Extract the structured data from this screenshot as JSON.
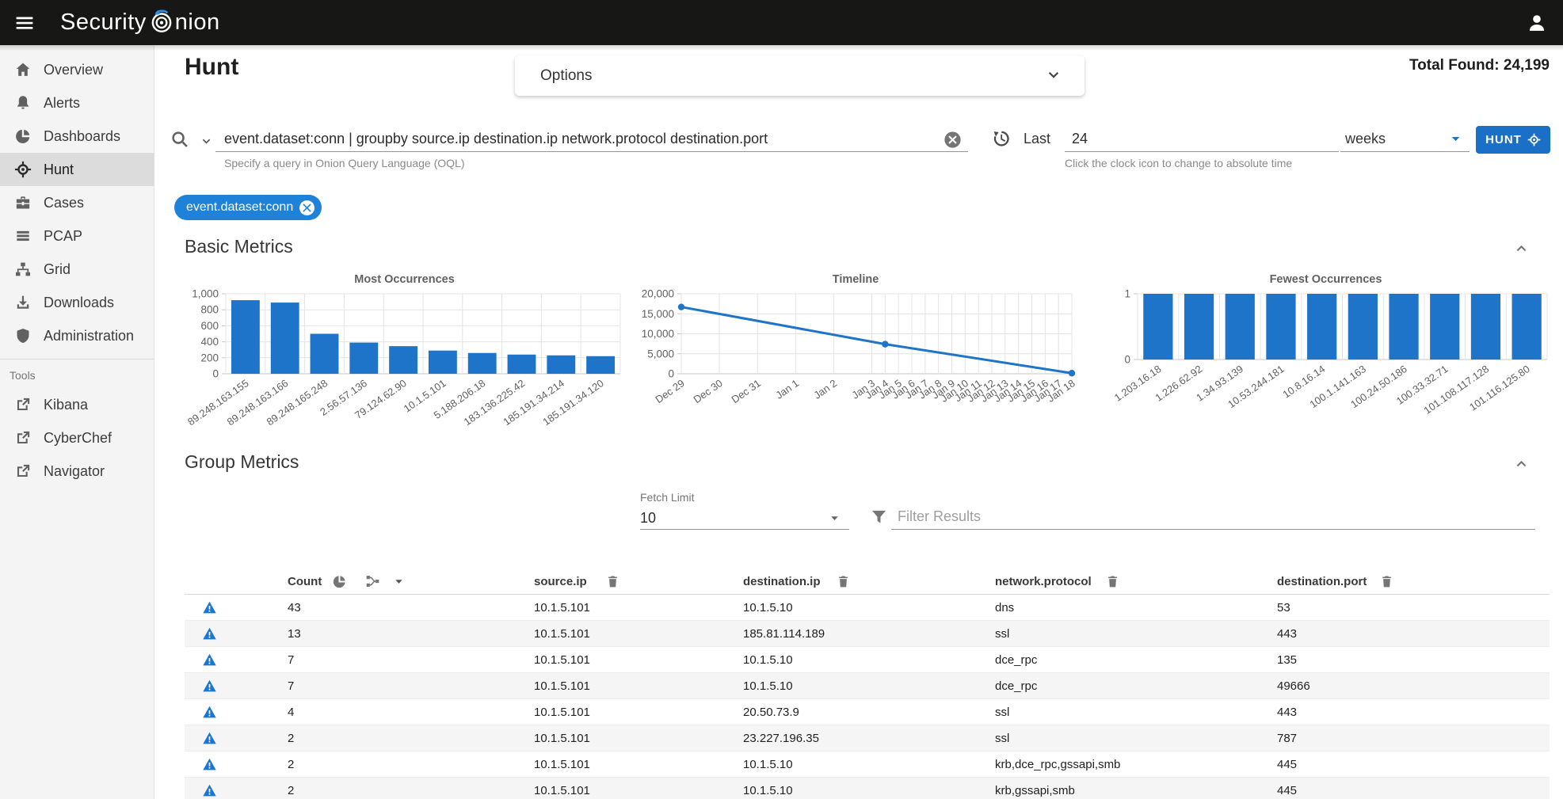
{
  "colors": {
    "accent": "#1976d2",
    "bar": "#1d74c8",
    "chip": "#1e82d8",
    "button": "#1a6fc6",
    "line": "#1d74c8"
  },
  "topbar": {
    "brand_prefix": "Security",
    "brand_suffix": "nion"
  },
  "sidebar": {
    "items": [
      {
        "label": "Overview",
        "icon": "home-icon"
      },
      {
        "label": "Alerts",
        "icon": "bell-icon"
      },
      {
        "label": "Dashboards",
        "icon": "pie-chart-icon"
      },
      {
        "label": "Hunt",
        "icon": "crosshair-icon",
        "active": true
      },
      {
        "label": "Cases",
        "icon": "briefcase-icon"
      },
      {
        "label": "PCAP",
        "icon": "lines-icon"
      },
      {
        "label": "Grid",
        "icon": "sitemap-icon"
      },
      {
        "label": "Downloads",
        "icon": "download-icon"
      },
      {
        "label": "Administration",
        "icon": "shield-icon"
      }
    ],
    "tools_label": "Tools",
    "tools": [
      {
        "label": "Kibana",
        "icon": "external-link-icon"
      },
      {
        "label": "CyberChef",
        "icon": "external-link-icon"
      },
      {
        "label": "Navigator",
        "icon": "external-link-icon"
      }
    ]
  },
  "header": {
    "title": "Hunt",
    "options_label": "Options",
    "total_found_label": "Total Found:",
    "total_found_value": "24,199"
  },
  "query": {
    "value": "event.dataset:conn | groupby source.ip destination.ip network.protocol destination.port",
    "hint": "Specify a query in Onion Query Language (OQL)",
    "relative_label": "Last",
    "duration_value": "24",
    "duration_unit": "weeks",
    "time_hint": "Click the clock icon to change to absolute time",
    "hunt_button_label": "HUNT"
  },
  "filter_chip": {
    "label": "event.dataset:conn"
  },
  "sections": {
    "basic_metrics": "Basic Metrics",
    "group_metrics": "Group Metrics"
  },
  "group_controls": {
    "fetch_limit_label": "Fetch Limit",
    "fetch_limit_value": "10",
    "filter_placeholder": "Filter Results"
  },
  "chart_data": [
    {
      "type": "bar",
      "title": "Most Occurrences",
      "categories": [
        "89.248.163.155",
        "89.248.163.166",
        "89.248.165.248",
        "2.56.57.136",
        "79.124.62.90",
        "10.1.5.101",
        "5.188.206.18",
        "183.136.225.42",
        "185.191.34.214",
        "185.191.34.120"
      ],
      "values": [
        920,
        890,
        500,
        390,
        345,
        290,
        260,
        240,
        230,
        220
      ],
      "ylim": [
        0,
        1000
      ],
      "yticks": [
        "1,000",
        "800",
        "600",
        "400",
        "200",
        "0"
      ],
      "grid": true,
      "legend": false
    },
    {
      "type": "line",
      "title": "Timeline",
      "categories": [
        "Dec 29",
        "Dec 30",
        "Dec 31",
        "Jan 1",
        "Jan 2",
        "Jan 3",
        "Jan 4",
        "Jan 5",
        "Jan 6",
        "Jan 7",
        "Jan 8",
        "Jan 9",
        "Jan 10",
        "Jan 11",
        "Jan 12",
        "Jan 13",
        "Jan 14",
        "Jan 15",
        "Jan 16",
        "Jan 17",
        "Jan 18"
      ],
      "points": [
        {
          "x": "Dec 29",
          "y": 16700
        },
        {
          "x": "Jan 4",
          "y": 7400
        },
        {
          "x": "Jan 18",
          "y": 150
        }
      ],
      "ylim": [
        0,
        20000
      ],
      "yticks": [
        "20,000",
        "15,000",
        "10,000",
        "5,000",
        "0"
      ],
      "grid": true,
      "legend": false
    },
    {
      "type": "bar",
      "title": "Fewest Occurrences",
      "categories": [
        "1.203.16.18",
        "1.226.62.92",
        "1.34.93.139",
        "10.53.244.181",
        "10.8.16.14",
        "100.1.141.163",
        "100.24.50.186",
        "100.33.32.71",
        "101.108.117.128",
        "101.116.125.80"
      ],
      "values": [
        1,
        1,
        1,
        1,
        1,
        1,
        1,
        1,
        1,
        1
      ],
      "ylim": [
        0,
        1
      ],
      "yticks": [
        "1",
        "0"
      ],
      "grid": true,
      "legend": false
    }
  ],
  "table": {
    "columns": [
      "Count",
      "source.ip",
      "destination.ip",
      "network.protocol",
      "destination.port"
    ],
    "rows": [
      [
        "43",
        "10.1.5.101",
        "10.1.5.10",
        "dns",
        "53"
      ],
      [
        "13",
        "10.1.5.101",
        "185.81.114.189",
        "ssl",
        "443"
      ],
      [
        "7",
        "10.1.5.101",
        "10.1.5.10",
        "dce_rpc",
        "135"
      ],
      [
        "7",
        "10.1.5.101",
        "10.1.5.10",
        "dce_rpc",
        "49666"
      ],
      [
        "4",
        "10.1.5.101",
        "20.50.73.9",
        "ssl",
        "443"
      ],
      [
        "2",
        "10.1.5.101",
        "23.227.196.35",
        "ssl",
        "787"
      ],
      [
        "2",
        "10.1.5.101",
        "10.1.5.10",
        "krb,dce_rpc,gssapi,smb",
        "445"
      ],
      [
        "2",
        "10.1.5.101",
        "10.1.5.10",
        "krb,gssapi,smb",
        "445"
      ]
    ]
  }
}
